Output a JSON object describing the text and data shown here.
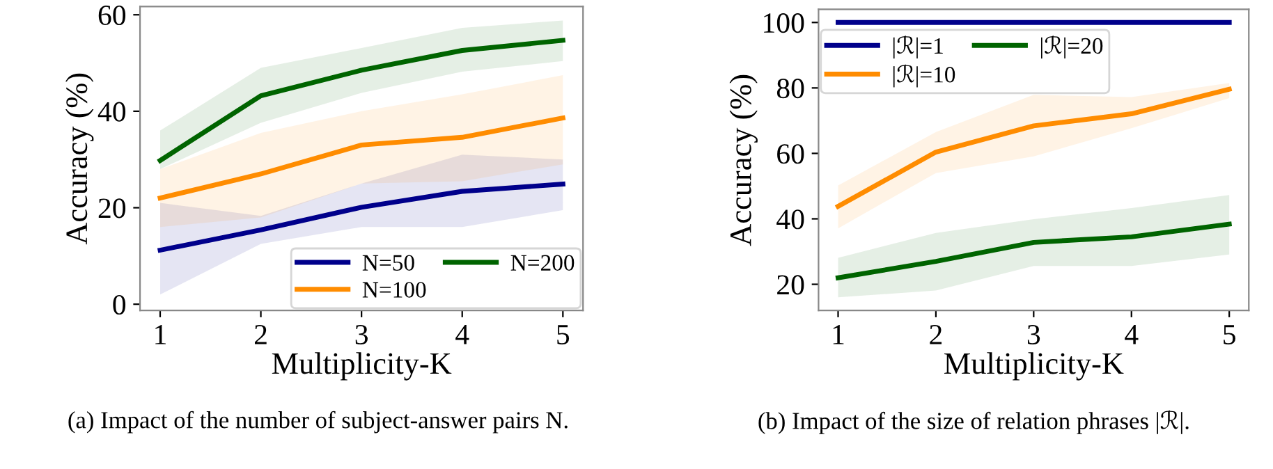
{
  "chart_data": [
    {
      "type": "line",
      "xlabel": "Multiplicity-K",
      "ylabel": "Accuracy (%)",
      "x": [
        1,
        2,
        3,
        4,
        5
      ],
      "xlim": [
        0.8,
        5.2
      ],
      "xticks": [
        1,
        2,
        3,
        4,
        5
      ],
      "ylim": [
        -1.3,
        61.7
      ],
      "yticks": [
        0,
        20,
        40,
        60
      ],
      "grid": false,
      "legend": "bottom right",
      "line_style": "solid",
      "marker": "none",
      "series": [
        {
          "name": "N=50",
          "color": "#00008b",
          "values": [
            11.2,
            15.4,
            20.1,
            23.4,
            24.9
          ],
          "lower": [
            2,
            12.5,
            16,
            16,
            19.5
          ],
          "upper": [
            21,
            18.3,
            25,
            31,
            30
          ]
        },
        {
          "name": "N=100",
          "color": "#ff8c00",
          "values": [
            22,
            27,
            33,
            34.6,
            38.6
          ],
          "lower": [
            16,
            18,
            25,
            25.5,
            29
          ],
          "upper": [
            28,
            35.5,
            40,
            43.5,
            47.5
          ]
        },
        {
          "name": "N=200",
          "color": "#006400",
          "values": [
            29.8,
            43.2,
            48.5,
            52.6,
            54.7
          ],
          "lower": [
            28,
            37.6,
            43.8,
            48.2,
            50.4
          ],
          "upper": [
            36,
            49,
            53.1,
            57.3,
            58.8
          ]
        }
      ],
      "annotations": [
        "(a) Impact of the number of subject-answer pairs N."
      ]
    },
    {
      "type": "line",
      "xlabel": "Multiplicity-K",
      "ylabel": "Accuracy (%)",
      "x": [
        1,
        2,
        3,
        4,
        5
      ],
      "xlim": [
        0.8,
        5.2
      ],
      "xticks": [
        1,
        2,
        3,
        4,
        5
      ],
      "ylim": [
        12,
        104
      ],
      "yticks": [
        20,
        40,
        60,
        80,
        100
      ],
      "grid": false,
      "legend": "top left",
      "line_style": "solid",
      "marker": "none",
      "series": [
        {
          "name": "|ℛ|=1",
          "color": "#00008b",
          "values": [
            100,
            100,
            100,
            100,
            100
          ]
        },
        {
          "name": "|ℛ|=10",
          "color": "#ff8c00",
          "values": [
            43.8,
            60.4,
            68.4,
            72.1,
            79.6
          ],
          "lower": [
            37.1,
            54,
            59.1,
            67.7,
            76.9
          ],
          "upper": [
            50.2,
            66.5,
            77.9,
            77.2,
            81.5
          ]
        },
        {
          "name": "|ℛ|=20",
          "color": "#006400",
          "values": [
            22,
            27,
            32.8,
            34.5,
            38.4
          ],
          "lower": [
            16,
            18.1,
            25.6,
            25.6,
            29.1
          ],
          "upper": [
            28.1,
            35.7,
            39.9,
            43.3,
            47.3
          ]
        }
      ],
      "annotations": [
        "(b) Impact of the size of relation phrases |ℛ|."
      ]
    }
  ]
}
